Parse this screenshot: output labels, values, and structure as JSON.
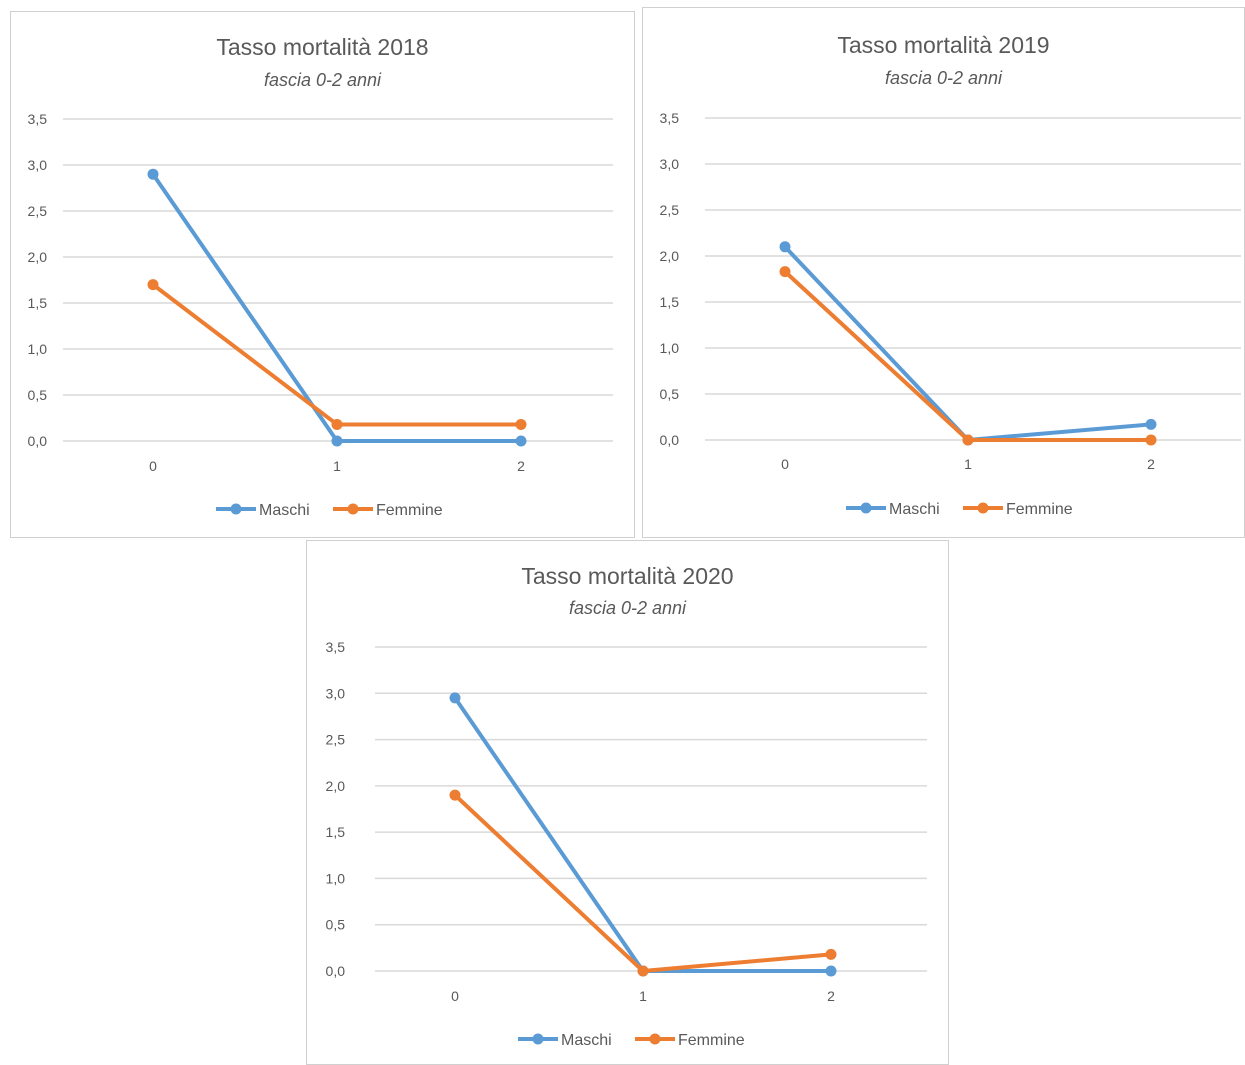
{
  "colors": {
    "maschi": "#5B9BD5",
    "femmine": "#ED7D31",
    "grid": "#d9d9d9",
    "text": "#595959"
  },
  "chart_data": [
    {
      "type": "line",
      "title": "Tasso mortalità 2018",
      "subtitle": "fascia 0-2 anni",
      "x": [
        "0",
        "1",
        "2"
      ],
      "series": [
        {
          "name": "Maschi",
          "values": [
            2.9,
            0.0,
            0.0
          ]
        },
        {
          "name": "Femmine",
          "values": [
            1.7,
            0.18,
            0.18
          ]
        }
      ],
      "ylim": [
        0,
        3.5
      ],
      "yticks": [
        "0,0",
        "0,5",
        "1,0",
        "1,5",
        "2,0",
        "2,5",
        "3,0",
        "3,5"
      ],
      "grid": true,
      "legend": "bottom"
    },
    {
      "type": "line",
      "title": "Tasso mortalità 2019",
      "subtitle": "fascia 0-2 anni",
      "x": [
        "0",
        "1",
        "2"
      ],
      "series": [
        {
          "name": "Maschi",
          "values": [
            2.1,
            0.0,
            0.17
          ]
        },
        {
          "name": "Femmine",
          "values": [
            1.83,
            0.0,
            0.0
          ]
        }
      ],
      "ylim": [
        0,
        3.5
      ],
      "yticks": [
        "0,0",
        "0,5",
        "1,0",
        "1,5",
        "2,0",
        "2,5",
        "3,0",
        "3,5"
      ],
      "grid": true,
      "legend": "bottom"
    },
    {
      "type": "line",
      "title": "Tasso mortalità 2020",
      "subtitle": "fascia 0-2 anni",
      "x": [
        "0",
        "1",
        "2"
      ],
      "series": [
        {
          "name": "Maschi",
          "values": [
            2.95,
            0.0,
            0.0
          ]
        },
        {
          "name": "Femmine",
          "values": [
            1.9,
            0.0,
            0.18
          ]
        }
      ],
      "ylim": [
        0,
        3.5
      ],
      "yticks": [
        "0,0",
        "0,5",
        "1,0",
        "1,5",
        "2,0",
        "2,5",
        "3,0",
        "3,5"
      ],
      "grid": true,
      "legend": "bottom"
    }
  ]
}
